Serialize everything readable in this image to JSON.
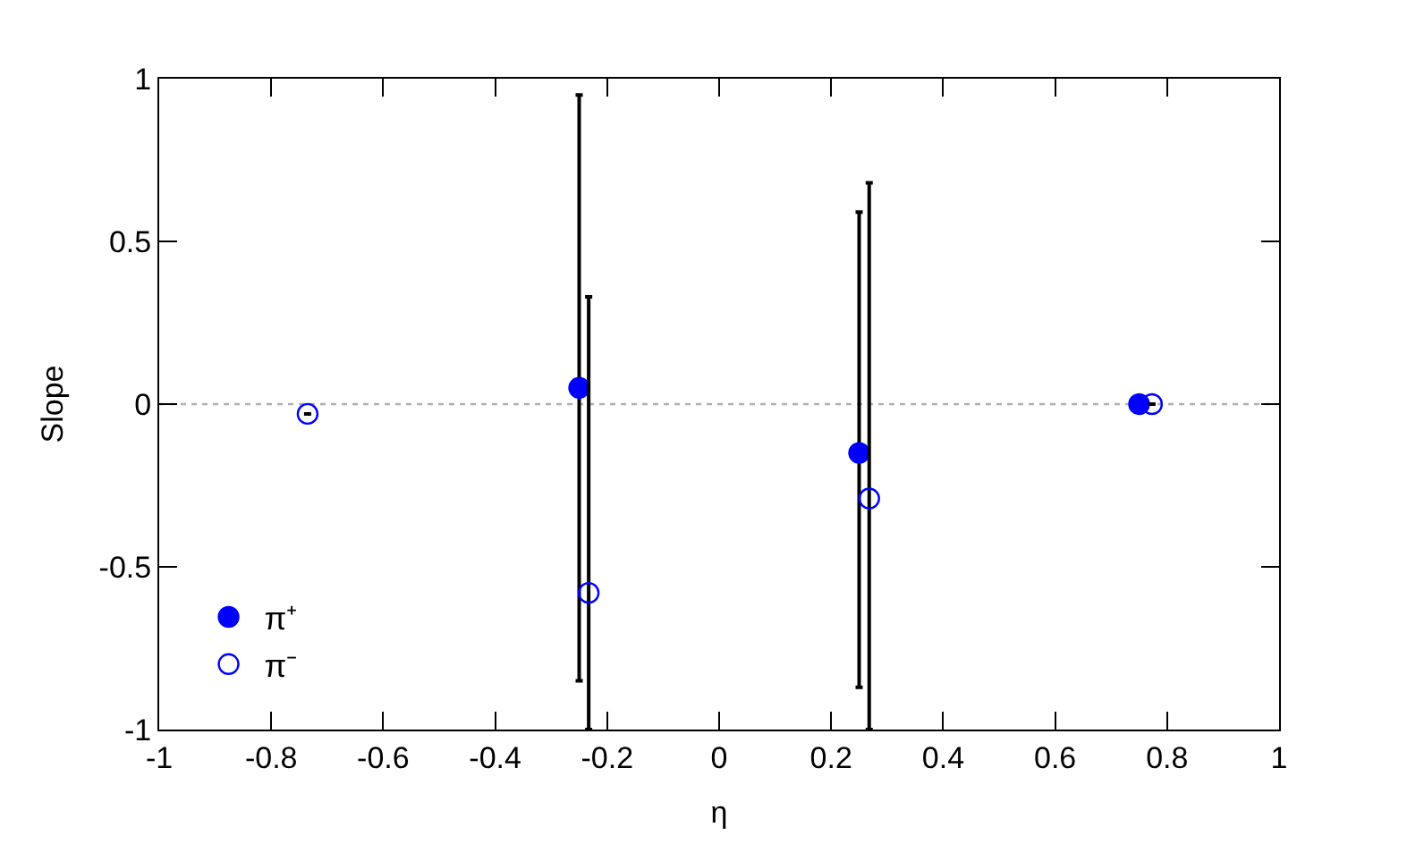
{
  "chart_data": {
    "type": "scatter",
    "xlabel": "η",
    "ylabel": "Slope",
    "series": [
      {
        "name": "π⁺",
        "color": "#0000ff",
        "marker": "circle",
        "x": [
          -0.25,
          0.25,
          0.75
        ],
        "values": [
          0.05,
          -0.15,
          0.0
        ],
        "errors": [
          [
            -0.85,
            0.95
          ],
          [
            -0.87,
            0.59
          ],
          null
        ]
      },
      {
        "name": "π⁻",
        "color": "#0000ff",
        "marker": "circle",
        "x": [
          -0.735,
          -0.233,
          0.268,
          0.773
        ],
        "values": [
          -0.03,
          -0.58,
          -0.29,
          0.0
        ],
        "errors": [
          null,
          [
            -1,
            0.33
          ],
          [
            -1,
            0.68
          ],
          null
        ]
      }
    ],
    "xlim": [
      -1,
      1
    ],
    "xticks": [
      -1,
      -0.8,
      -0.6,
      -0.4,
      -0.2,
      0,
      0.2,
      0.4,
      0.6,
      0.8,
      1
    ],
    "ylim": [
      -1,
      1
    ],
    "yticks": [
      -1,
      -0.5,
      0,
      0.5,
      1
    ],
    "ref_lines": [
      {
        "axis": "y",
        "value": 0,
        "color": "#b0b0b0",
        "line_style": "dotted"
      }
    ],
    "grid": false,
    "legend": "bottom left"
  }
}
